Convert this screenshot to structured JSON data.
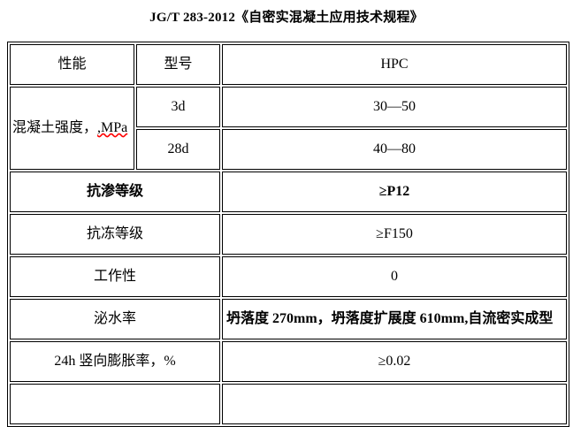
{
  "document": {
    "title": "JG/T 283-2012《自密实混凝土应用技术规程》"
  },
  "colors": {
    "background": "#ffffff",
    "text": "#000000",
    "table_border": "#000000",
    "spellcheck_underline": "#ff0000"
  },
  "table": {
    "header": {
      "performance": "性能",
      "model": "型号",
      "product": "HPC"
    },
    "strength": {
      "label": "混凝土强度，",
      "label_suffix_misspelled": ",MPa",
      "ages": [
        {
          "age": "3d",
          "range": "30—50"
        },
        {
          "age": "28d",
          "range": "40—80"
        }
      ]
    },
    "properties": [
      {
        "label": "抗渗等级",
        "value": "≥P12"
      },
      {
        "label": "抗冻等级",
        "value": "≥F150"
      },
      {
        "label": "工作性",
        "value": "0"
      },
      {
        "label": "泌水率",
        "value": "坍落度 270mm，坍落度扩展度 610mm,自流密实成型"
      },
      {
        "label": "24h 竖向膨胀率，%",
        "value": "≥0.02"
      }
    ],
    "partial_row": {
      "label": "",
      "value": ""
    }
  }
}
